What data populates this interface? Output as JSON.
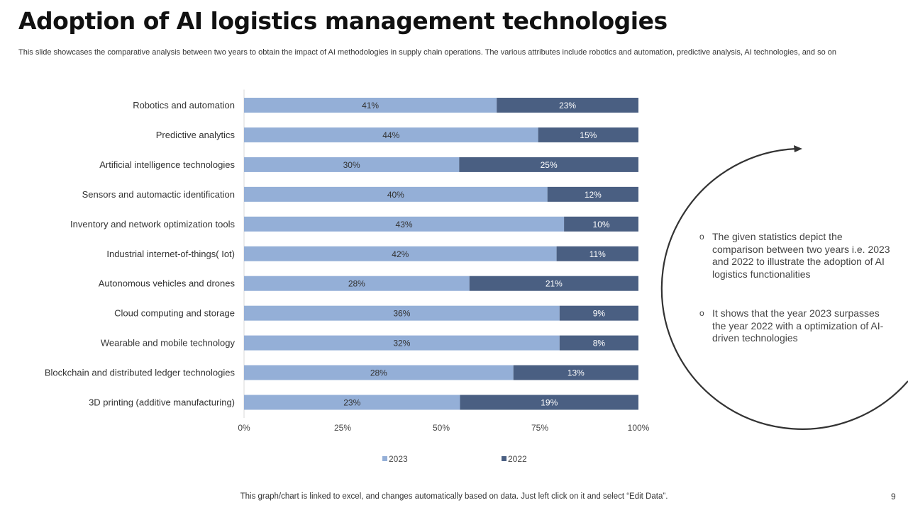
{
  "title": "Adoption of AI logistics management technologies",
  "subtitle": "This slide showcases the comparative analysis between two years to obtain the impact of AI methodologies in supply chain operations. The various attributes include robotics and automation, predictive analysis, AI technologies, and so on",
  "colors": {
    "series_2023": "#94afd7",
    "series_2022": "#4a5f82",
    "label_2023": "#333333",
    "label_2022": "#ffffff"
  },
  "chart_data": {
    "type": "bar",
    "orientation": "horizontal",
    "stacked": "percent",
    "title": "",
    "xlabel": "",
    "ylabel": "",
    "xlim": [
      0,
      100
    ],
    "categories": [
      "Robotics and automation",
      "Predictive analytics",
      "Artificial intelligence technologies",
      "Sensors and automactic identification",
      "Inventory and network optimization tools",
      "Industrial internet-of-things( Iot)",
      "Autonomous vehicles and drones",
      "Cloud computing and storage",
      "Wearable and mobile technology",
      "Blockchain and distributed ledger technologies",
      "3D printing (additive manufacturing)"
    ],
    "series": [
      {
        "name": "2023",
        "values": [
          41,
          44,
          30,
          40,
          43,
          42,
          28,
          36,
          32,
          28,
          23
        ]
      },
      {
        "name": "2022",
        "values": [
          23,
          15,
          25,
          12,
          10,
          11,
          21,
          9,
          8,
          13,
          19
        ]
      }
    ],
    "value_suffix": "%",
    "x_ticks": [
      "0%",
      "25%",
      "50%",
      "75%",
      "100%"
    ],
    "legend": {
      "placement": "bottom",
      "entries": [
        "2023",
        "2022"
      ]
    },
    "grid": false
  },
  "bullets": [
    "The given statistics depict the comparison between two years i.e. 2023 and 2022 to illustrate the adoption of AI logistics functionalities",
    "It shows that the year 2023 surpasses the year 2022 with a optimization of AI-driven technologies"
  ],
  "bullet_marker": "o",
  "footer": "This graph/chart is linked to excel,  and changes automatically based on data. Just left click on it and select “Edit Data”.",
  "page_number": "9"
}
